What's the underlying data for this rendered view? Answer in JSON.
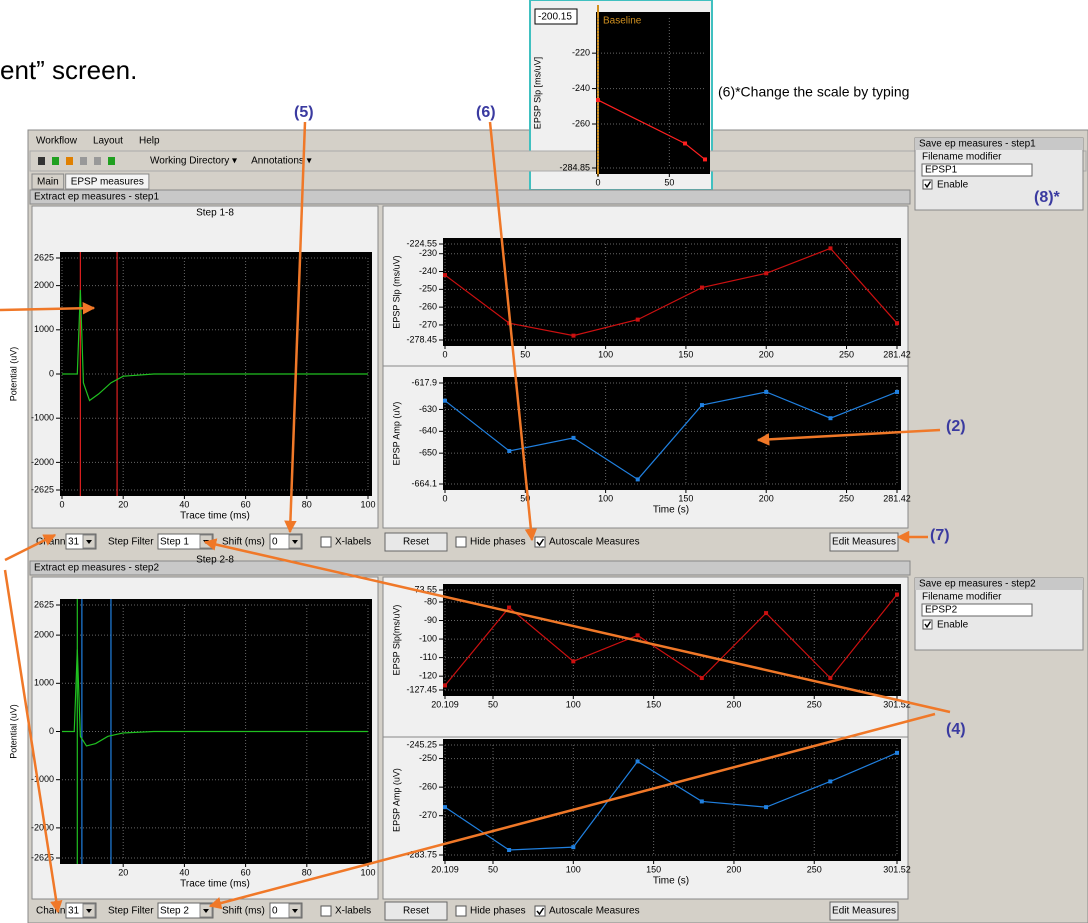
{
  "ui": {
    "caption": "ent” screen.",
    "callouts": {
      "c5": "(5)",
      "c6": "(6)",
      "c6note": "(6)*Change the scale by typing",
      "c2": "(2)",
      "c7": "(7)",
      "c8": "(8)*",
      "c4": "(4)"
    },
    "menu": [
      "Workflow",
      "Layout",
      "Help"
    ],
    "toolbar": [
      "Working Directory ▾",
      "Annotations ▾"
    ],
    "tabs": [
      "Main",
      "EPSP measures"
    ],
    "steps": [
      {
        "header": "Extract ep measures - step1",
        "channel_label": "Channel",
        "channel": "31",
        "step_filter_label": "Step Filter",
        "step_filter": "Step 1",
        "shift_label": "Shift (ms)",
        "shift": "0",
        "xlabels": "X-labels",
        "reset": "Reset",
        "hide_phases": "Hide phases",
        "autoscale": "Autoscale Measures",
        "edit": "Edit Measures",
        "save_title": "Save ep measures - step1",
        "filename_label": "Filename modifier",
        "filename": "EPSP1",
        "enable": "Enable"
      },
      {
        "header": "Extract ep measures - step2",
        "channel_label": "Channel",
        "channel": "31",
        "step_filter_label": "Step Filter",
        "step_filter": "Step 2",
        "shift_label": "Shift (ms)",
        "shift": "0",
        "xlabels": "X-labels",
        "reset": "Reset",
        "hide_phases": "Hide phases",
        "autoscale": "Autoscale Measures",
        "edit": "Edit Measures",
        "save_title": "Save ep measures - step2",
        "filename_label": "Filename modifier",
        "filename": "EPSP2",
        "enable": "Enable"
      }
    ]
  },
  "chart_data": [
    {
      "type": "line",
      "ylabel": "EPSP Slp [ms/uV]",
      "annotation": "Baseline",
      "x": [
        0,
        61,
        75
      ],
      "series": [
        {
          "color": "#ff2020",
          "values": [
            -246.5,
            -271,
            -280
          ]
        }
      ],
      "xlim": [
        0,
        75
      ],
      "ylim": [
        -284.85,
        -200.15
      ],
      "xticks": [
        0,
        50
      ],
      "yticks": [
        -220,
        -240,
        -260,
        -284.85
      ],
      "grid": true
    },
    {
      "type": "line",
      "title": "Step 1-8",
      "xlabel": "Trace time (ms)",
      "ylabel": "Potential (uV)",
      "x": [
        0,
        5,
        6,
        7,
        9,
        12,
        16,
        20,
        30,
        60,
        100
      ],
      "series": [
        {
          "color": "#20c020",
          "values": [
            0,
            0,
            1900,
            -200,
            -600,
            -450,
            -200,
            -50,
            0,
            0,
            0
          ]
        }
      ],
      "cursors": [
        {
          "x": 6,
          "color": "#e02020"
        },
        {
          "x": 18,
          "color": "#e02020"
        }
      ],
      "xlim": [
        0,
        100
      ],
      "ylim": [
        -2625,
        2625
      ],
      "xticks": [
        0,
        20,
        40,
        60,
        80,
        100
      ],
      "yticks": [
        2625,
        2000,
        1000,
        0,
        -1000,
        -2000,
        -2625
      ],
      "grid": true
    },
    {
      "type": "line",
      "ylabel": "EPSP Slp (ms/uV)",
      "x": [
        0,
        40,
        80,
        120,
        160,
        200,
        240,
        281.42
      ],
      "series": [
        {
          "color": "#cc1010",
          "values": [
            -242,
            -269,
            -276,
            -267,
            -249,
            -241,
            -227,
            -269
          ]
        }
      ],
      "xlim": [
        0,
        281.42
      ],
      "ylim": [
        -278.45,
        -224.55
      ],
      "xticks": [
        0,
        50,
        100,
        150,
        200,
        250,
        281.42
      ],
      "yticks": [
        -224.55,
        -230,
        -240,
        -250,
        -260,
        -270,
        -278.45
      ],
      "grid": true
    },
    {
      "type": "line",
      "xlabel": "Time (s)",
      "ylabel": "EPSP Amp (uV)",
      "x": [
        0,
        40,
        80,
        120,
        160,
        200,
        240,
        281.42
      ],
      "series": [
        {
          "color": "#2080e0",
          "values": [
            -626,
            -649,
            -643,
            -662,
            -628,
            -622,
            -634,
            -622
          ]
        }
      ],
      "xlim": [
        0,
        281.42
      ],
      "ylim": [
        -664.1,
        -617.9
      ],
      "xticks": [
        0,
        50,
        100,
        150,
        200,
        250,
        281.42
      ],
      "yticks": [
        -617.9,
        -630,
        -640,
        -650,
        -664.1
      ],
      "grid": true
    },
    {
      "type": "line",
      "title": "Step 2-8",
      "xlabel": "Trace time (ms)",
      "ylabel": "Potential (uV)",
      "x": [
        0,
        4,
        5,
        6,
        8,
        11,
        15,
        20,
        30,
        60,
        100
      ],
      "series": [
        {
          "color": "#20c020",
          "values": [
            0,
            0,
            1700,
            -100,
            -300,
            -250,
            -100,
            -30,
            0,
            0,
            0
          ]
        }
      ],
      "cursors": [
        {
          "x": 5,
          "color": "#20c020"
        },
        {
          "x": 6.5,
          "color": "#2080e0"
        },
        {
          "x": 16,
          "color": "#2080e0"
        }
      ],
      "xlim": [
        0,
        100
      ],
      "ylim": [
        -2625,
        2625
      ],
      "xticks": [
        20,
        40,
        60,
        80,
        100
      ],
      "yticks": [
        2625,
        2000,
        1000,
        0,
        -1000,
        -2000,
        -2625
      ],
      "grid": true
    },
    {
      "type": "line",
      "ylabel": "EPSP Slp(ms/uV)",
      "x": [
        20.109,
        60,
        100,
        140,
        180,
        220,
        260,
        301.52
      ],
      "series": [
        {
          "color": "#cc1010",
          "values": [
            -125,
            -83,
            -112,
            -98,
            -121,
            -86,
            -121,
            -76
          ]
        }
      ],
      "xlim": [
        20.109,
        301.52
      ],
      "ylim": [
        -127.45,
        -73.55
      ],
      "xticks": [
        20.109,
        50,
        100,
        150,
        200,
        250,
        301.52
      ],
      "yticks": [
        -73.55,
        -80,
        -90,
        -100,
        -110,
        -120,
        -127.45
      ],
      "grid": true
    },
    {
      "type": "line",
      "xlabel": "Time (s)",
      "ylabel": "EPSP Amp (uV)",
      "x": [
        20.109,
        60,
        100,
        140,
        180,
        220,
        260,
        301.52
      ],
      "series": [
        {
          "color": "#2080e0",
          "values": [
            -267,
            -282,
            -281,
            -251,
            -265,
            -267,
            -258,
            -248
          ]
        }
      ],
      "xlim": [
        20.109,
        301.52
      ],
      "ylim": [
        -283.75,
        -245.25
      ],
      "xticks": [
        20.109,
        50,
        100,
        150,
        200,
        250,
        301.52
      ],
      "yticks": [
        -245.25,
        -250,
        -260,
        -270,
        -283.75
      ],
      "grid": true
    }
  ]
}
